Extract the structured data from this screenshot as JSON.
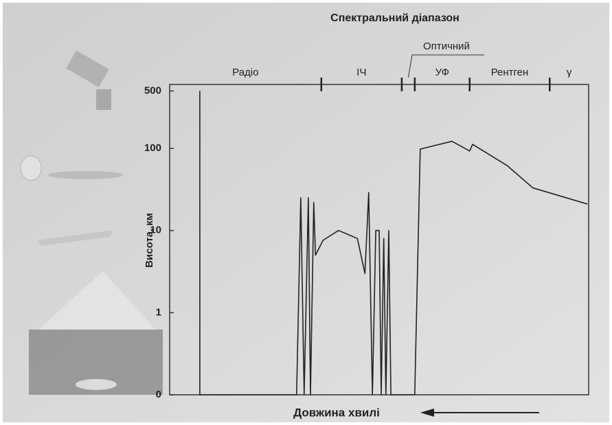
{
  "chart_data": {
    "type": "line",
    "title": "Спектральний діапазон",
    "y_label": "Висота, км",
    "x_label": "Довжина хвилі",
    "regions": [
      "Радіо",
      "ІЧ",
      "Оптичний",
      "УФ",
      "Рентген",
      "γ"
    ],
    "region_boundaries": [
      36.2,
      55.4,
      58.5,
      71.6,
      90.7
    ],
    "xlim": [
      0,
      100
    ],
    "ylim": [
      0.1,
      600
    ],
    "log_y": true,
    "yticks": [
      {
        "value": 0.1,
        "label": "0"
      },
      1,
      10,
      100,
      500
    ],
    "series": [
      {
        "color": "#222222",
        "x": [
          7.2,
          7.2,
          30.3,
          31.3,
          32.1,
          33.1,
          33.6,
          34.4,
          34.8,
          36.6,
          40.3,
          44.8,
          46.6,
          47.5,
          48.4,
          49.2,
          50.0,
          50.5,
          51.1,
          51.6,
          52.3,
          52.8,
          58.5,
          59.8,
          67.4,
          71.6,
          72.3,
          80.5,
          86.7,
          99.7
        ],
        "values": [
          500,
          0.1,
          0.1,
          25,
          0.1,
          25,
          0.1,
          22,
          5,
          7.6,
          10,
          8,
          3,
          29,
          0.1,
          10,
          10,
          0.1,
          8,
          0.1,
          10,
          0.1,
          0.1,
          98,
          122,
          93,
          112,
          62,
          33,
          21
        ]
      }
    ]
  }
}
